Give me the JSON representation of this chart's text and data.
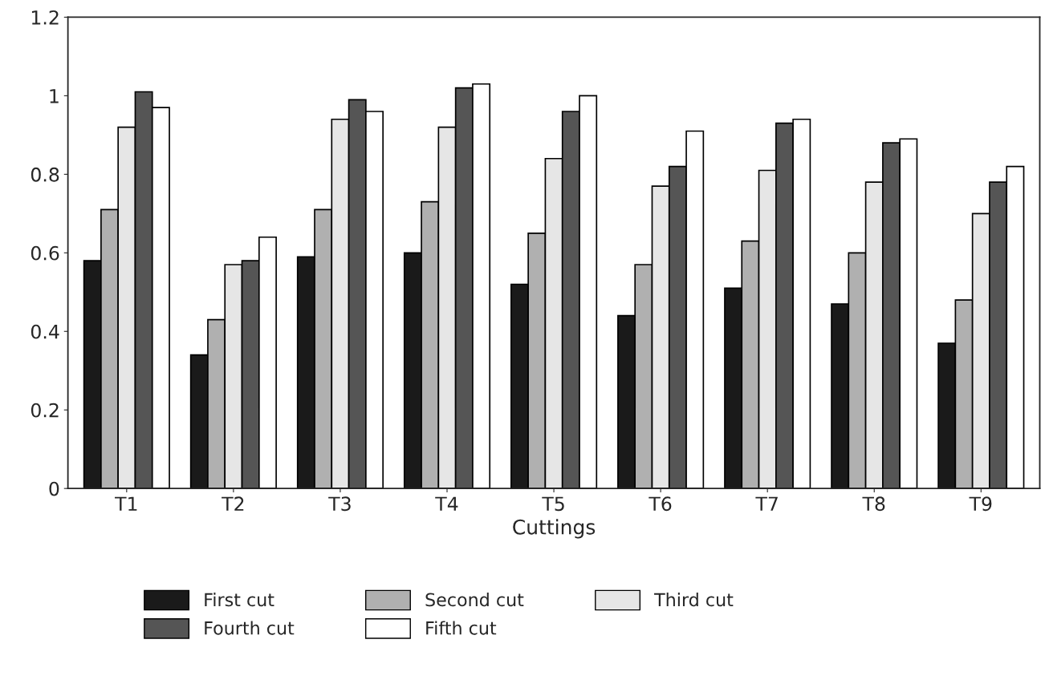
{
  "chart_data": {
    "type": "bar",
    "xlabel": "Cuttings",
    "categories": [
      "T1",
      "T2",
      "T3",
      "T4",
      "T5",
      "T6",
      "T7",
      "T8",
      "T9"
    ],
    "series": [
      {
        "name": "First cut",
        "color": "#1a1a1a",
        "values": [
          0.58,
          0.34,
          0.59,
          0.6,
          0.52,
          0.44,
          0.51,
          0.47,
          0.37
        ]
      },
      {
        "name": "Second cut",
        "color": "#b0b0b0",
        "values": [
          0.71,
          0.43,
          0.71,
          0.73,
          0.65,
          0.57,
          0.63,
          0.6,
          0.48
        ]
      },
      {
        "name": "Third cut",
        "color": "#e6e6e6",
        "values": [
          0.92,
          0.57,
          0.94,
          0.92,
          0.84,
          0.77,
          0.81,
          0.78,
          0.7
        ]
      },
      {
        "name": "Fourth cut",
        "color": "#555555",
        "values": [
          1.01,
          0.58,
          0.99,
          1.02,
          0.96,
          0.82,
          0.93,
          0.88,
          0.78
        ]
      },
      {
        "name": "Fifth cut",
        "color": "#ffffff",
        "values": [
          0.97,
          0.64,
          0.96,
          1.03,
          1.0,
          0.91,
          0.94,
          0.89,
          0.82
        ]
      }
    ],
    "ylim": [
      0,
      1.2
    ],
    "yticks": [
      0,
      0.2,
      0.4,
      0.6,
      0.8,
      1,
      1.2
    ],
    "grid": false,
    "legend": "bottom"
  }
}
